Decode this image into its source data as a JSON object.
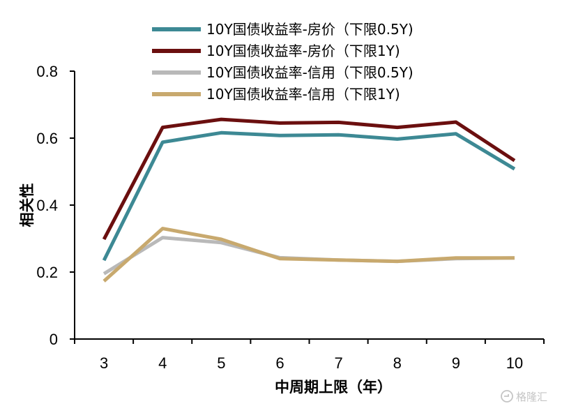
{
  "chart_data": {
    "type": "line",
    "title": "",
    "xlabel": "中周期上限（年）",
    "ylabel": "相关性",
    "x": [
      3,
      4,
      5,
      6,
      7,
      8,
      9,
      10
    ],
    "xlim": [
      2.5,
      10.5
    ],
    "ylim": [
      0,
      0.8
    ],
    "yticks": [
      "0",
      "0.2",
      "0.4",
      "0.6",
      "0.8"
    ],
    "xticks": [
      "3",
      "4",
      "5",
      "6",
      "7",
      "8",
      "9",
      "10"
    ],
    "grid": false,
    "legend_position": "top",
    "series": [
      {
        "name": "10Y国债收益率-房价（下限0.5Y)",
        "color": "#3d8994",
        "values": [
          0.235,
          0.588,
          0.616,
          0.608,
          0.61,
          0.597,
          0.613,
          0.508
        ]
      },
      {
        "name": "10Y国债收益率-房价（下限1Y)",
        "color": "#6b0f0f",
        "values": [
          0.298,
          0.632,
          0.656,
          0.645,
          0.647,
          0.632,
          0.648,
          0.533
        ]
      },
      {
        "name": "10Y国债收益率-信用（下限0.5Y)",
        "color": "#b9b9b9",
        "values": [
          0.195,
          0.303,
          0.288,
          0.243,
          0.236,
          0.232,
          0.24,
          0.242
        ]
      },
      {
        "name": "10Y国债收益率-信用（下限1Y)",
        "color": "#c8a96e",
        "values": [
          0.173,
          0.33,
          0.298,
          0.24,
          0.236,
          0.232,
          0.242,
          0.242
        ]
      }
    ]
  },
  "watermark": {
    "text": "格隆汇",
    "icon": "gelonghui-logo-icon"
  }
}
